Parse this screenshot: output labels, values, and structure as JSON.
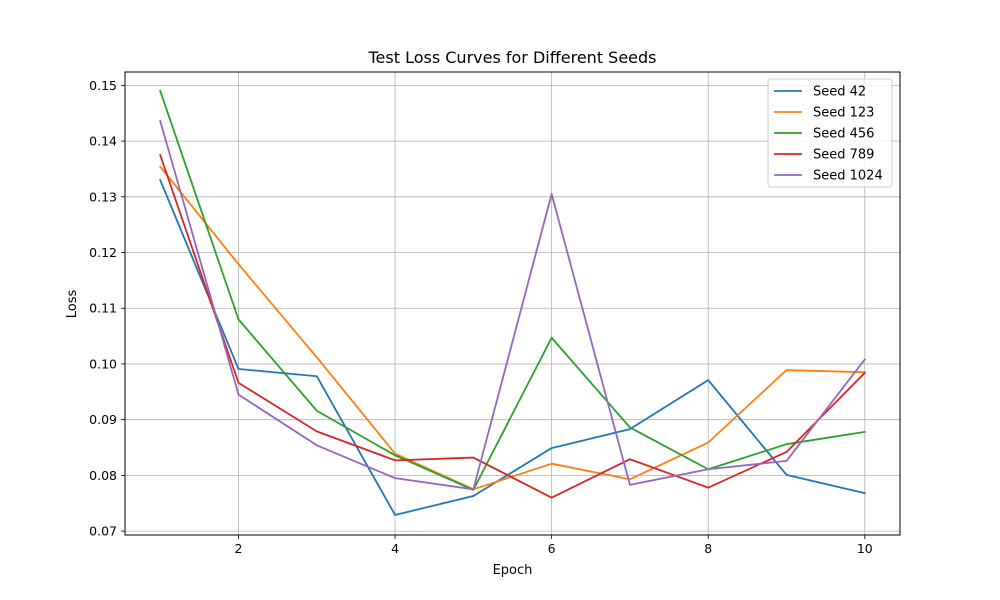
{
  "chart_data": {
    "type": "line",
    "title": "Test Loss Curves for Different Seeds",
    "xlabel": "Epoch",
    "ylabel": "Loss",
    "x": [
      1,
      2,
      3,
      4,
      5,
      6,
      7,
      8,
      9,
      10
    ],
    "xlim": [
      0.55,
      10.45
    ],
    "ylim": [
      0.0693,
      0.1524
    ],
    "xticks": [
      2,
      4,
      6,
      8,
      10
    ],
    "yticks": [
      0.07,
      0.08,
      0.09,
      0.1,
      0.11,
      0.12,
      0.13,
      0.14,
      0.15
    ],
    "ytick_labels": [
      "0.07",
      "0.08",
      "0.09",
      "0.10",
      "0.11",
      "0.12",
      "0.13",
      "0.14",
      "0.15"
    ],
    "grid": true,
    "legend_position": "top-right",
    "series": [
      {
        "name": "Seed 42",
        "color": "#1f77b4",
        "values": [
          0.133,
          0.0991,
          0.0978,
          0.0729,
          0.0763,
          0.0849,
          0.0883,
          0.0971,
          0.0801,
          0.0768
        ]
      },
      {
        "name": "Seed 123",
        "color": "#ff7f0e",
        "values": [
          0.1354,
          0.1179,
          0.1012,
          0.0839,
          0.0775,
          0.0821,
          0.0793,
          0.0859,
          0.0989,
          0.0985
        ]
      },
      {
        "name": "Seed 456",
        "color": "#2ca02c",
        "values": [
          0.149,
          0.108,
          0.0916,
          0.0836,
          0.0774,
          0.1047,
          0.0886,
          0.0811,
          0.0856,
          0.0878
        ]
      },
      {
        "name": "Seed 789",
        "color": "#d62728",
        "values": [
          0.1375,
          0.0966,
          0.0879,
          0.0827,
          0.0832,
          0.076,
          0.0829,
          0.0778,
          0.0842,
          0.0984
        ]
      },
      {
        "name": "Seed 1024",
        "color": "#9467bd",
        "values": [
          0.1436,
          0.0945,
          0.0854,
          0.0795,
          0.0775,
          0.1305,
          0.0783,
          0.0811,
          0.0826,
          0.1008
        ]
      }
    ]
  }
}
